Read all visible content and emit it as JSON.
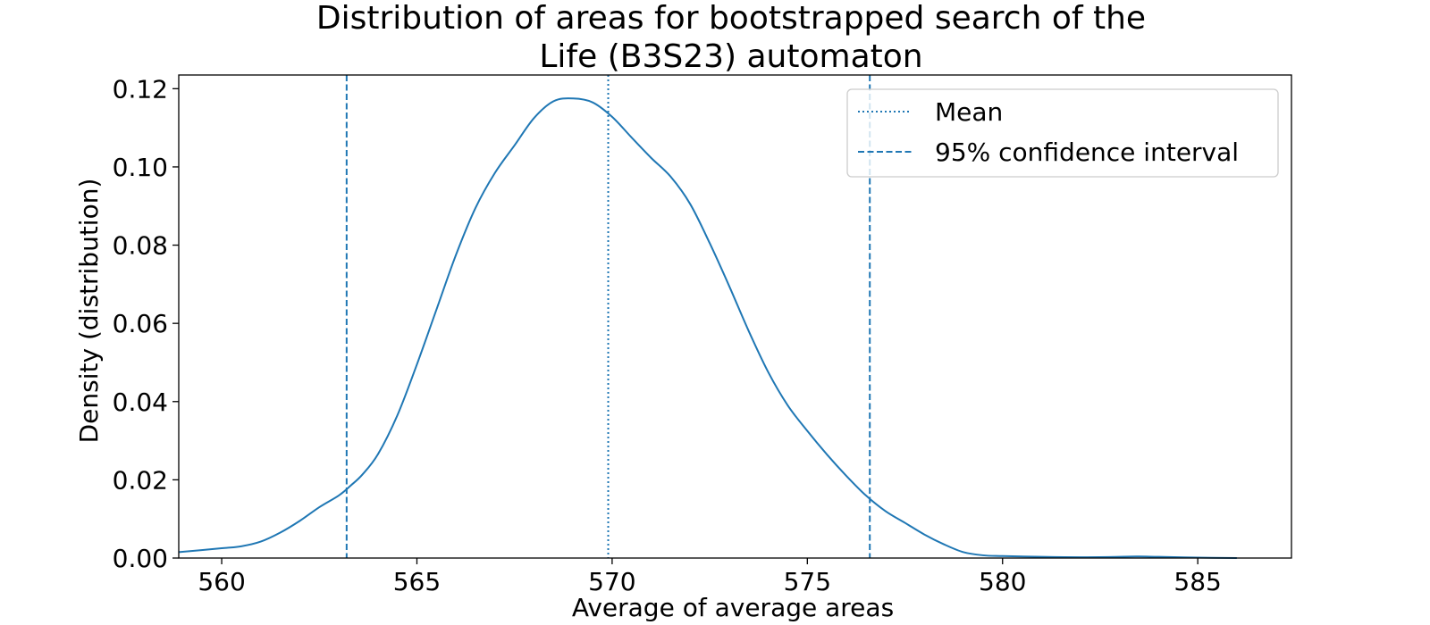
{
  "chart_data": {
    "type": "line",
    "title_lines": [
      "Distribution of areas for bootstrapped search of the",
      "Life (B3S23) automaton"
    ],
    "xlabel": "Average of average areas",
    "ylabel": "Density (distribution)",
    "xlim": [
      558.9,
      587.4
    ],
    "ylim": [
      0.0,
      0.1235
    ],
    "x_ticks": [
      560,
      565,
      570,
      575,
      580,
      585
    ],
    "x_tick_labels": [
      "560",
      "565",
      "570",
      "575",
      "580",
      "585"
    ],
    "y_ticks": [
      0.0,
      0.02,
      0.04,
      0.06,
      0.08,
      0.1,
      0.12
    ],
    "y_tick_labels": [
      "0.00",
      "0.02",
      "0.04",
      "0.06",
      "0.08",
      "0.10",
      "0.12"
    ],
    "grid": false,
    "legend_position": "top-right",
    "series_color": "#1f77b4",
    "series": [
      {
        "name": "",
        "x": [
          558.9,
          560,
          560.5,
          561,
          561.5,
          562,
          562.5,
          563,
          563.3,
          563.6,
          564,
          564.5,
          565,
          565.5,
          566,
          566.5,
          567,
          567.5,
          568,
          568.5,
          569,
          569.5,
          570,
          570.5,
          571,
          571.5,
          572,
          572.5,
          573,
          573.5,
          574,
          574.5,
          575,
          575.5,
          576,
          576.5,
          577,
          577.5,
          578,
          578.5,
          579,
          579.5,
          580,
          581,
          582,
          583,
          583.5,
          584,
          585,
          586
        ],
        "y": [
          0.0015,
          0.0025,
          0.003,
          0.0042,
          0.0065,
          0.0095,
          0.013,
          0.016,
          0.0185,
          0.0213,
          0.0265,
          0.0365,
          0.0495,
          0.0635,
          0.0775,
          0.0895,
          0.0985,
          0.1055,
          0.1125,
          0.1168,
          0.1175,
          0.1165,
          0.1128,
          0.1075,
          0.1023,
          0.0975,
          0.0905,
          0.0805,
          0.0695,
          0.058,
          0.0475,
          0.039,
          0.0325,
          0.0265,
          0.021,
          0.016,
          0.012,
          0.009,
          0.006,
          0.0035,
          0.0015,
          0.0007,
          0.0005,
          0.0003,
          0.0002,
          0.0003,
          0.0004,
          0.0003,
          0.0001,
          0.0
        ]
      }
    ],
    "vlines": [
      {
        "name": "Mean",
        "x": 569.9,
        "style": "dotted"
      },
      {
        "name": "95% confidence interval",
        "x": 563.2,
        "style": "dashed"
      },
      {
        "name": "95% confidence interval",
        "x": 576.6,
        "style": "dashed"
      }
    ],
    "legend": [
      {
        "label": "Mean",
        "style": "dotted"
      },
      {
        "label": "95% confidence interval",
        "style": "dashed"
      }
    ]
  }
}
